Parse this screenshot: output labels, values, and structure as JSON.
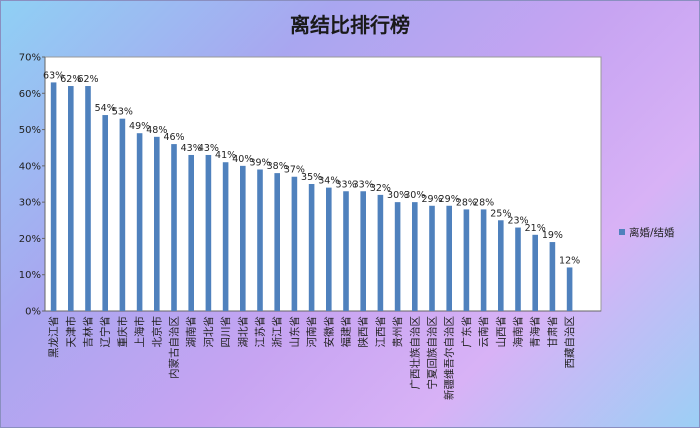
{
  "chart_data": {
    "type": "bar",
    "title": "离结比排行榜",
    "categories": [
      "黑龙江省",
      "天津市",
      "吉林省",
      "辽宁省",
      "重庆市",
      "上海市",
      "北京市",
      "内蒙古自治区",
      "湖南省",
      "河北省",
      "四川省",
      "湖北省",
      "江苏省",
      "浙江省",
      "山东省",
      "河南省",
      "安徽省",
      "福建省",
      "陕西省",
      "江西省",
      "贵州省",
      "广西壮族自治区",
      "宁夏回族自治区",
      "新疆维吾尔自治区",
      "广东省",
      "云南省",
      "山西省",
      "海南省",
      "青海省",
      "甘肃省",
      "西藏自治区"
    ],
    "values": [
      63,
      62,
      62,
      54,
      53,
      49,
      48,
      46,
      43,
      43,
      41,
      40,
      39,
      38,
      37,
      35,
      34,
      33,
      33,
      32,
      30,
      30,
      29,
      29,
      28,
      28,
      25,
      23,
      21,
      19,
      12
    ],
    "data_labels": [
      "63%",
      "62%",
      "62%",
      "54%",
      "53%",
      "49%",
      "48%",
      "46%",
      "43%",
      "43%",
      "41%",
      "40%",
      "39%",
      "38%",
      "37%",
      "35%",
      "34%",
      "33%",
      "33%",
      "32%",
      "30%",
      "30%",
      "29%",
      "29%",
      "28%",
      "28%",
      "25%",
      "23%",
      "21%",
      "19%",
      "12%"
    ],
    "y_ticks": [
      "0%",
      "10%",
      "20%",
      "30%",
      "40%",
      "50%",
      "60%",
      "70%"
    ],
    "ylim": [
      0,
      70
    ],
    "grid": false,
    "series": [
      {
        "name": "离婚/结婚",
        "color": "#4f81bd"
      }
    ],
    "legend_position": "right"
  }
}
